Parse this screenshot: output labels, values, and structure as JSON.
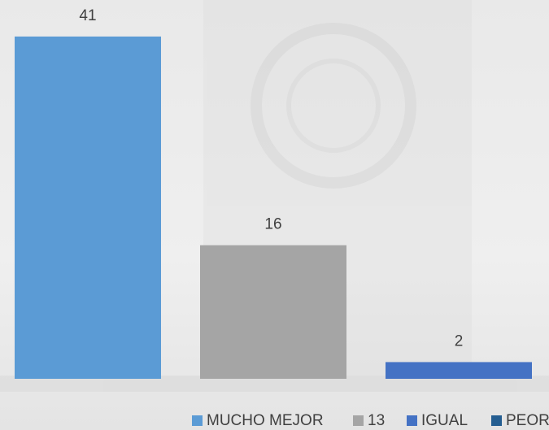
{
  "chart_data": {
    "type": "bar",
    "categories": [
      null
    ],
    "series": [
      {
        "name": "MUCHO MEJOR",
        "color": "#5b9bd5",
        "values": [
          41
        ]
      },
      {
        "name": "13",
        "color": "#a5a5a5",
        "values": [
          16
        ]
      },
      {
        "name": "IGUAL",
        "color": "#4472c4",
        "values": [
          2
        ]
      },
      {
        "name": "PEOR",
        "color": "#255e91",
        "values": [
          null
        ]
      }
    ],
    "legend": "bottom"
  }
}
